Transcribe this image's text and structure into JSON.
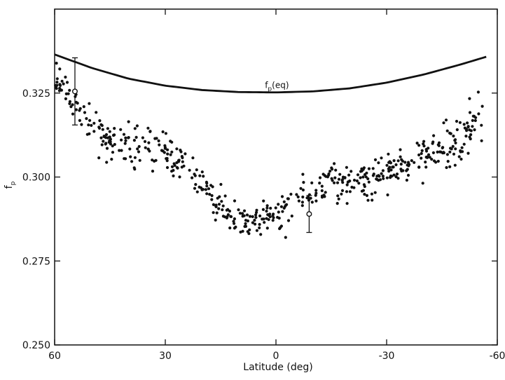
{
  "chart_data": {
    "type": "scatter",
    "title": "",
    "xlabel": "Latitude (deg)",
    "ylabel": {
      "main": "f",
      "sub": "p"
    },
    "x_reversed": true,
    "xlim": [
      60,
      -60
    ],
    "ylim": [
      0.25,
      0.35
    ],
    "x_ticks": [
      60,
      30,
      0,
      -30,
      -60
    ],
    "x_tick_labels": [
      "60",
      "30",
      "0",
      "-30",
      "-60"
    ],
    "y_ticks": [
      0.25,
      0.275,
      0.3,
      0.325
    ],
    "y_tick_labels": [
      "0.250",
      "0.275",
      "0.300",
      "0.325"
    ],
    "grid": false,
    "reference_curve": {
      "label": {
        "main": "f",
        "sub": "p",
        "suffix": "(eq)"
      },
      "label_at": {
        "x": 3,
        "y": 0.3265
      },
      "x": [
        60,
        50,
        40,
        30,
        20,
        10,
        0,
        -10,
        -20,
        -30,
        -40,
        -50,
        -57
      ],
      "y": [
        0.3365,
        0.3325,
        0.3293,
        0.3272,
        0.3259,
        0.3253,
        0.3252,
        0.3255,
        0.3264,
        0.3281,
        0.3305,
        0.3335,
        0.3358
      ]
    },
    "error_bars": [
      {
        "x": 54.5,
        "y": 0.3255,
        "low": 0.3155,
        "high": 0.3355
      },
      {
        "x": -9,
        "y": 0.289,
        "low": 0.2835,
        "high": 0.2945
      }
    ],
    "points_description": "Several hundred observed f_p values vs latitude; approximate trend sampled below.",
    "scatter_trend": {
      "x": [
        60,
        55,
        50,
        45,
        40,
        35,
        30,
        25,
        20,
        15,
        10,
        5,
        0,
        -5,
        -10,
        -15,
        -20,
        -25,
        -30,
        -35,
        -40,
        -45,
        -50,
        -55
      ],
      "y": [
        0.331,
        0.322,
        0.315,
        0.311,
        0.309,
        0.308,
        0.309,
        0.305,
        0.298,
        0.292,
        0.287,
        0.286,
        0.289,
        0.292,
        0.296,
        0.298,
        0.297,
        0.298,
        0.302,
        0.304,
        0.306,
        0.308,
        0.311,
        0.318
      ],
      "spread": [
        0.004,
        0.007,
        0.007,
        0.007,
        0.007,
        0.007,
        0.006,
        0.006,
        0.005,
        0.005,
        0.004,
        0.005,
        0.005,
        0.006,
        0.006,
        0.006,
        0.006,
        0.006,
        0.006,
        0.006,
        0.007,
        0.007,
        0.008,
        0.008
      ]
    }
  }
}
